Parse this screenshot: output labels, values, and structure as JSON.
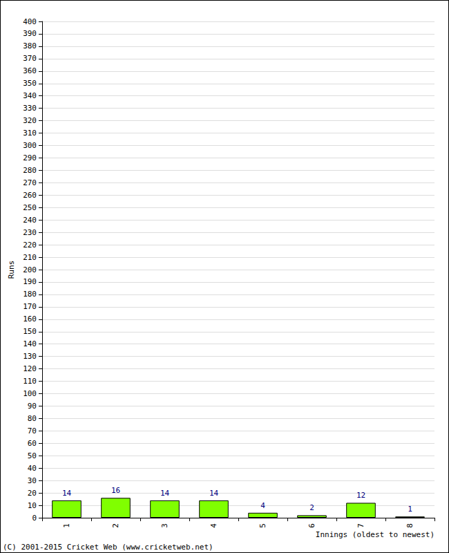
{
  "chart_data": {
    "type": "bar",
    "x_label": "Innings (oldest to newest)",
    "y_label": "Runs",
    "annotations": [
      "(C) 2001-2015 Cricket Web (www.cricketweb.net)"
    ],
    "categories": [
      "1",
      "2",
      "3",
      "4",
      "5",
      "6",
      "7",
      "8"
    ],
    "values": [
      14,
      16,
      14,
      14,
      4,
      2,
      12,
      1
    ],
    "color": "#80ff00",
    "ylim": [
      0,
      400
    ],
    "yticks": [
      0,
      10,
      20,
      30,
      40,
      50,
      60,
      70,
      80,
      90,
      100,
      110,
      120,
      130,
      140,
      150,
      160,
      170,
      180,
      190,
      200,
      210,
      220,
      230,
      240,
      250,
      260,
      270,
      280,
      290,
      300,
      310,
      320,
      330,
      340,
      350,
      360,
      370,
      380,
      390,
      400
    ],
    "grid": true,
    "data_labels": true
  }
}
